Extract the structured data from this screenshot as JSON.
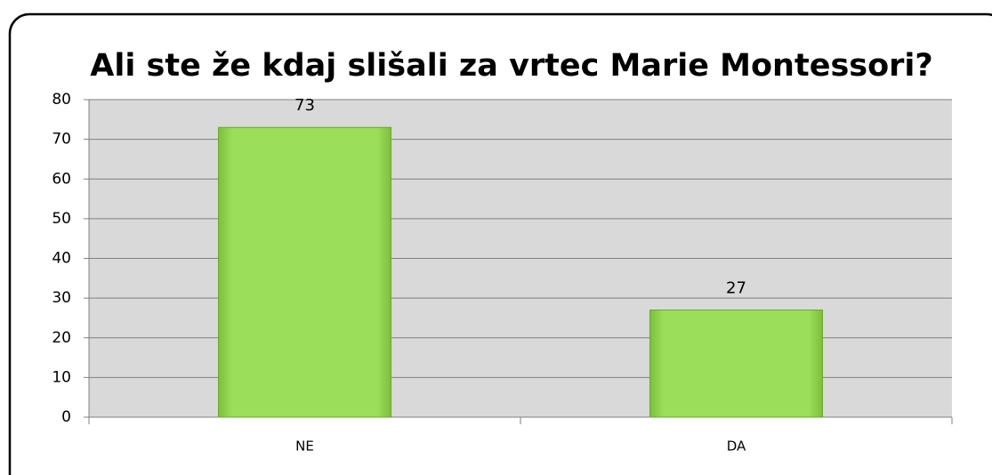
{
  "chart_data": {
    "type": "bar",
    "title": "Ali ste že kdaj slišali za vrtec Marie Montessori?",
    "categories": [
      "NE",
      "DA"
    ],
    "values": [
      73,
      27
    ],
    "color": "#9bde5a",
    "ylim": [
      0,
      80
    ],
    "yticks": [
      0,
      10,
      20,
      30,
      40,
      50,
      60,
      70,
      80
    ],
    "grid": true
  }
}
